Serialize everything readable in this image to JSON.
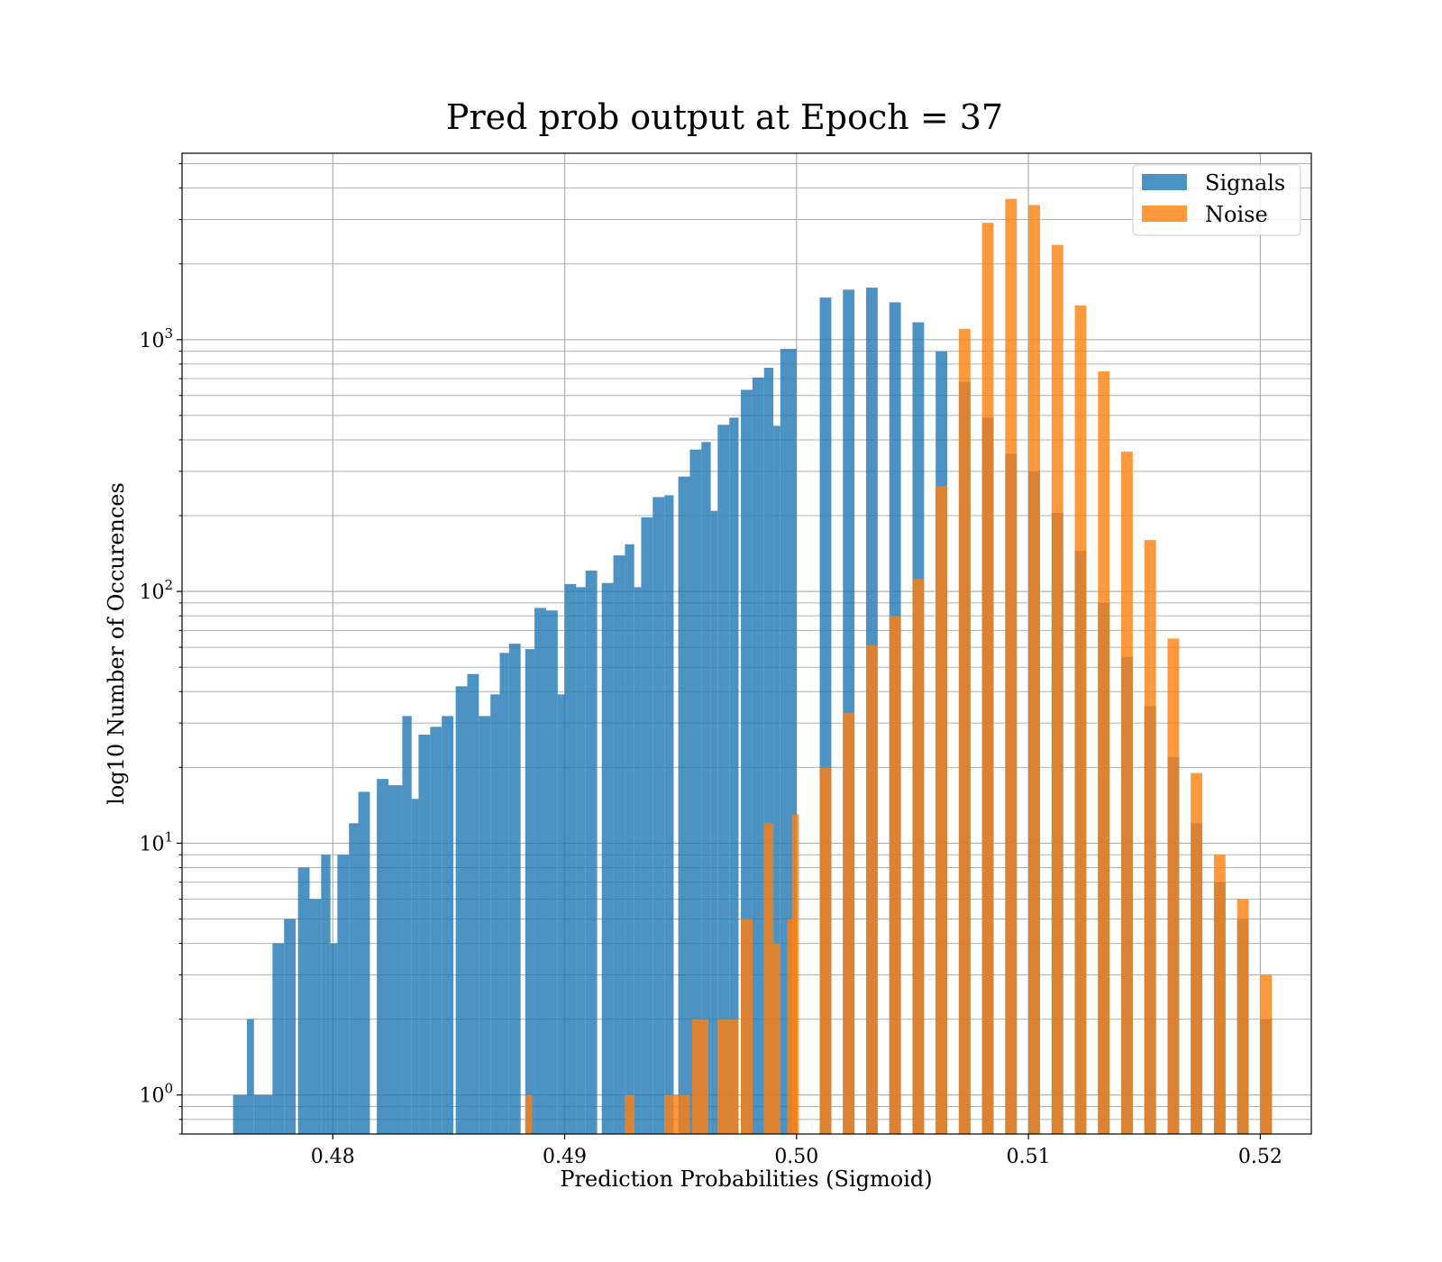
{
  "chart_data": {
    "type": "bar",
    "title": "Pred prob output at Epoch = 37",
    "xlabel": "Prediction Probabilities (Sigmoid)",
    "ylabel": "log10 Number of Occurences",
    "x_scale": "linear",
    "y_scale": "log",
    "xlim": [
      0.4735,
      0.5222
    ],
    "ylim": [
      0.7,
      5500
    ],
    "x_ticks": [
      0.48,
      0.49,
      0.5,
      0.51,
      0.52
    ],
    "x_tick_labels": [
      "0.48",
      "0.49",
      "0.50",
      "0.51",
      "0.52"
    ],
    "y_ticks": [
      1,
      10,
      100,
      1000
    ],
    "y_tick_labels": [
      {
        "base": "10",
        "exp": "0"
      },
      {
        "base": "10",
        "exp": "1"
      },
      {
        "base": "10",
        "exp": "2"
      },
      {
        "base": "10",
        "exp": "3"
      }
    ],
    "grid": true,
    "legend_position": "top-right",
    "series": [
      {
        "name": "Signals",
        "color": "#1f77b4",
        "opacity": 0.8,
        "bins": [
          [
            0.4757,
            0.4763,
            1
          ],
          [
            0.4763,
            0.4766,
            2
          ],
          [
            0.4766,
            0.4774,
            1
          ],
          [
            0.4774,
            0.4779,
            4
          ],
          [
            0.4779,
            0.4784,
            5
          ],
          [
            0.4785,
            0.479,
            8
          ],
          [
            0.479,
            0.4795,
            6
          ],
          [
            0.4795,
            0.4799,
            9
          ],
          [
            0.4799,
            0.4802,
            4
          ],
          [
            0.4802,
            0.4807,
            9
          ],
          [
            0.4807,
            0.4811,
            12
          ],
          [
            0.4811,
            0.4816,
            16
          ],
          [
            0.4819,
            0.4824,
            18
          ],
          [
            0.4824,
            0.483,
            17
          ],
          [
            0.483,
            0.4834,
            32
          ],
          [
            0.4834,
            0.4837,
            15
          ],
          [
            0.4837,
            0.4842,
            27
          ],
          [
            0.4842,
            0.4847,
            29
          ],
          [
            0.4847,
            0.4852,
            32
          ],
          [
            0.4853,
            0.4858,
            42
          ],
          [
            0.4858,
            0.4863,
            47
          ],
          [
            0.4863,
            0.4868,
            32
          ],
          [
            0.4868,
            0.4872,
            39
          ],
          [
            0.4872,
            0.4876,
            57
          ],
          [
            0.4876,
            0.4881,
            62
          ],
          [
            0.4883,
            0.4887,
            59
          ],
          [
            0.4887,
            0.4892,
            86
          ],
          [
            0.4892,
            0.4897,
            84
          ],
          [
            0.4897,
            0.49,
            39
          ],
          [
            0.49,
            0.4905,
            107
          ],
          [
            0.4905,
            0.4909,
            104
          ],
          [
            0.4909,
            0.4914,
            121
          ],
          [
            0.4916,
            0.4921,
            108
          ],
          [
            0.4921,
            0.4926,
            139
          ],
          [
            0.4926,
            0.493,
            154
          ],
          [
            0.493,
            0.4933,
            104
          ],
          [
            0.4933,
            0.4938,
            197
          ],
          [
            0.4938,
            0.4943,
            237
          ],
          [
            0.4943,
            0.4947,
            241
          ],
          [
            0.4949,
            0.4954,
            286
          ],
          [
            0.4954,
            0.4959,
            366
          ],
          [
            0.4959,
            0.4963,
            392
          ],
          [
            0.4963,
            0.4966,
            209
          ],
          [
            0.4966,
            0.4971,
            459
          ],
          [
            0.4971,
            0.4975,
            490
          ],
          [
            0.4976,
            0.4981,
            632
          ],
          [
            0.4981,
            0.4986,
            707
          ],
          [
            0.4986,
            0.499,
            773
          ],
          [
            0.499,
            0.4993,
            455
          ],
          [
            0.4993,
            0.5,
            919
          ],
          [
            0.501,
            0.5015,
            1469
          ],
          [
            0.502,
            0.5025,
            1580
          ],
          [
            0.503,
            0.5035,
            1609
          ],
          [
            0.504,
            0.5045,
            1407
          ],
          [
            0.505,
            0.5055,
            1172
          ],
          [
            0.506,
            0.5065,
            897
          ],
          [
            0.507,
            0.5075,
            680
          ],
          [
            0.508,
            0.5085,
            490
          ],
          [
            0.509,
            0.5095,
            352
          ],
          [
            0.51,
            0.5105,
            300
          ],
          [
            0.511,
            0.5115,
            205
          ],
          [
            0.512,
            0.5125,
            145
          ],
          [
            0.513,
            0.5135,
            90
          ],
          [
            0.514,
            0.5145,
            55
          ],
          [
            0.515,
            0.5155,
            35
          ],
          [
            0.516,
            0.5165,
            22
          ],
          [
            0.517,
            0.5175,
            12
          ],
          [
            0.518,
            0.5185,
            7
          ],
          [
            0.519,
            0.5195,
            5
          ],
          [
            0.52,
            0.5205,
            2
          ]
        ]
      },
      {
        "name": "Noise",
        "color": "#ff7f0e",
        "opacity": 0.8,
        "bins": [
          [
            0.4883,
            0.4886,
            1
          ],
          [
            0.4926,
            0.493,
            1
          ],
          [
            0.4943,
            0.495,
            1
          ],
          [
            0.495,
            0.4954,
            1
          ],
          [
            0.4955,
            0.4958,
            2
          ],
          [
            0.4958,
            0.4962,
            2
          ],
          [
            0.4966,
            0.497,
            2
          ],
          [
            0.497,
            0.4975,
            2
          ],
          [
            0.4976,
            0.4981,
            5
          ],
          [
            0.4986,
            0.499,
            12
          ],
          [
            0.499,
            0.4993,
            4
          ],
          [
            0.4996,
            0.5,
            5
          ],
          [
            0.4998,
            0.5001,
            13
          ],
          [
            0.501,
            0.5015,
            20
          ],
          [
            0.502,
            0.5025,
            33
          ],
          [
            0.503,
            0.5035,
            61
          ],
          [
            0.504,
            0.5045,
            80
          ],
          [
            0.505,
            0.5055,
            112
          ],
          [
            0.506,
            0.5065,
            262
          ],
          [
            0.507,
            0.5075,
            1104
          ],
          [
            0.508,
            0.5085,
            2912
          ],
          [
            0.509,
            0.5095,
            3624
          ],
          [
            0.51,
            0.5105,
            3424
          ],
          [
            0.511,
            0.5115,
            2380
          ],
          [
            0.512,
            0.5125,
            1368
          ],
          [
            0.513,
            0.5135,
            748
          ],
          [
            0.514,
            0.5145,
            359
          ],
          [
            0.515,
            0.5155,
            160
          ],
          [
            0.516,
            0.5165,
            65
          ],
          [
            0.517,
            0.5175,
            19
          ],
          [
            0.518,
            0.5185,
            9
          ],
          [
            0.519,
            0.5195,
            6
          ],
          [
            0.52,
            0.5205,
            3
          ]
        ]
      }
    ]
  }
}
